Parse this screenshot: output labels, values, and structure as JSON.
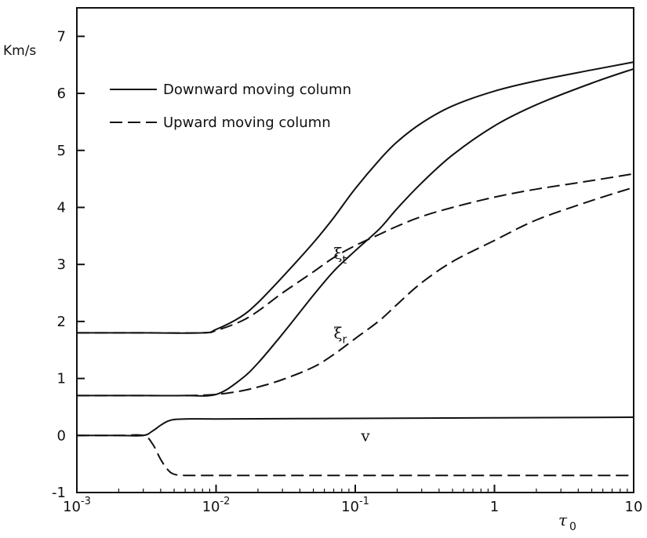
{
  "chart_data": {
    "type": "line",
    "ylabel": "Km/s",
    "xlabel": "τ",
    "xlabel_sub": "0",
    "xscale": "log",
    "xlim": [
      0.001,
      10
    ],
    "ylim": [
      -1,
      7.5
    ],
    "grid": false,
    "legend_position": "top-left",
    "xticks": [
      {
        "value": 0.001,
        "base": "10",
        "exp": "-3"
      },
      {
        "value": 0.01,
        "base": "10",
        "exp": "-2"
      },
      {
        "value": 0.1,
        "base": "10",
        "exp": "-1"
      },
      {
        "value": 1,
        "base": "1",
        "exp": ""
      },
      {
        "value": 10,
        "base": "10",
        "exp": ""
      }
    ],
    "yticks": [
      -1,
      0,
      1,
      2,
      3,
      4,
      5,
      6,
      7
    ],
    "legend": [
      {
        "label": "Downward moving column",
        "style": "solid"
      },
      {
        "label": "Upward moving column",
        "style": "dashed"
      }
    ],
    "series": [
      {
        "group": "xi_t",
        "style": "solid",
        "x": [
          0.001,
          0.003,
          0.008,
          0.01,
          0.015,
          0.02,
          0.03,
          0.05,
          0.07,
          0.1,
          0.15,
          0.2,
          0.3,
          0.5,
          1,
          2,
          5,
          10
        ],
        "y": [
          1.8,
          1.8,
          1.8,
          1.86,
          2.08,
          2.33,
          2.78,
          3.38,
          3.82,
          4.33,
          4.84,
          5.15,
          5.48,
          5.78,
          6.04,
          6.22,
          6.41,
          6.55
        ]
      },
      {
        "group": "xi_t",
        "style": "dashed",
        "x": [
          0.001,
          0.003,
          0.008,
          0.01,
          0.015,
          0.02,
          0.03,
          0.05,
          0.07,
          0.1,
          0.15,
          0.2,
          0.3,
          0.5,
          1,
          2,
          5,
          10
        ],
        "y": [
          1.8,
          1.8,
          1.8,
          1.84,
          2.0,
          2.18,
          2.5,
          2.87,
          3.12,
          3.33,
          3.53,
          3.67,
          3.84,
          4.0,
          4.18,
          4.32,
          4.47,
          4.59
        ]
      },
      {
        "group": "xi_r",
        "style": "solid",
        "x": [
          0.001,
          0.003,
          0.006,
          0.01,
          0.015,
          0.02,
          0.03,
          0.05,
          0.07,
          0.1,
          0.15,
          0.2,
          0.3,
          0.5,
          1,
          2,
          5,
          10
        ],
        "y": [
          0.7,
          0.7,
          0.7,
          0.72,
          0.98,
          1.27,
          1.78,
          2.46,
          2.88,
          3.24,
          3.63,
          3.98,
          4.43,
          4.92,
          5.43,
          5.8,
          6.18,
          6.43
        ]
      },
      {
        "group": "xi_r",
        "style": "dashed",
        "x": [
          0.001,
          0.003,
          0.006,
          0.01,
          0.015,
          0.02,
          0.03,
          0.05,
          0.07,
          0.1,
          0.15,
          0.2,
          0.3,
          0.5,
          1,
          2,
          5,
          10
        ],
        "y": [
          0.7,
          0.7,
          0.7,
          0.72,
          0.78,
          0.85,
          0.98,
          1.2,
          1.42,
          1.7,
          2.02,
          2.3,
          2.68,
          3.05,
          3.42,
          3.78,
          4.12,
          4.35
        ]
      },
      {
        "group": "v",
        "style": "solid",
        "x": [
          0.001,
          0.002,
          0.003,
          0.0035,
          0.004,
          0.0045,
          0.005,
          0.006,
          0.01,
          0.1,
          1,
          10
        ],
        "y": [
          0,
          0,
          0,
          0.08,
          0.18,
          0.25,
          0.28,
          0.29,
          0.29,
          0.3,
          0.31,
          0.32
        ]
      },
      {
        "group": "v",
        "style": "dashed",
        "x": [
          0.001,
          0.002,
          0.003,
          0.0035,
          0.004,
          0.0045,
          0.005,
          0.006,
          0.01,
          0.1,
          1,
          10
        ],
        "y": [
          0,
          0,
          0,
          -0.15,
          -0.42,
          -0.6,
          -0.68,
          -0.7,
          -0.7,
          -0.7,
          -0.7,
          -0.7
        ]
      }
    ],
    "annotations": [
      {
        "id": "xi_t",
        "symbol": "ξ",
        "sub": "t",
        "x": 0.07,
        "y": 3.1
      },
      {
        "id": "xi_r",
        "symbol": "ξ",
        "sub": "r",
        "x": 0.07,
        "y": 1.7
      },
      {
        "id": "v",
        "symbol": "v",
        "sub": "",
        "x": 0.11,
        "y": -0.1
      }
    ]
  }
}
